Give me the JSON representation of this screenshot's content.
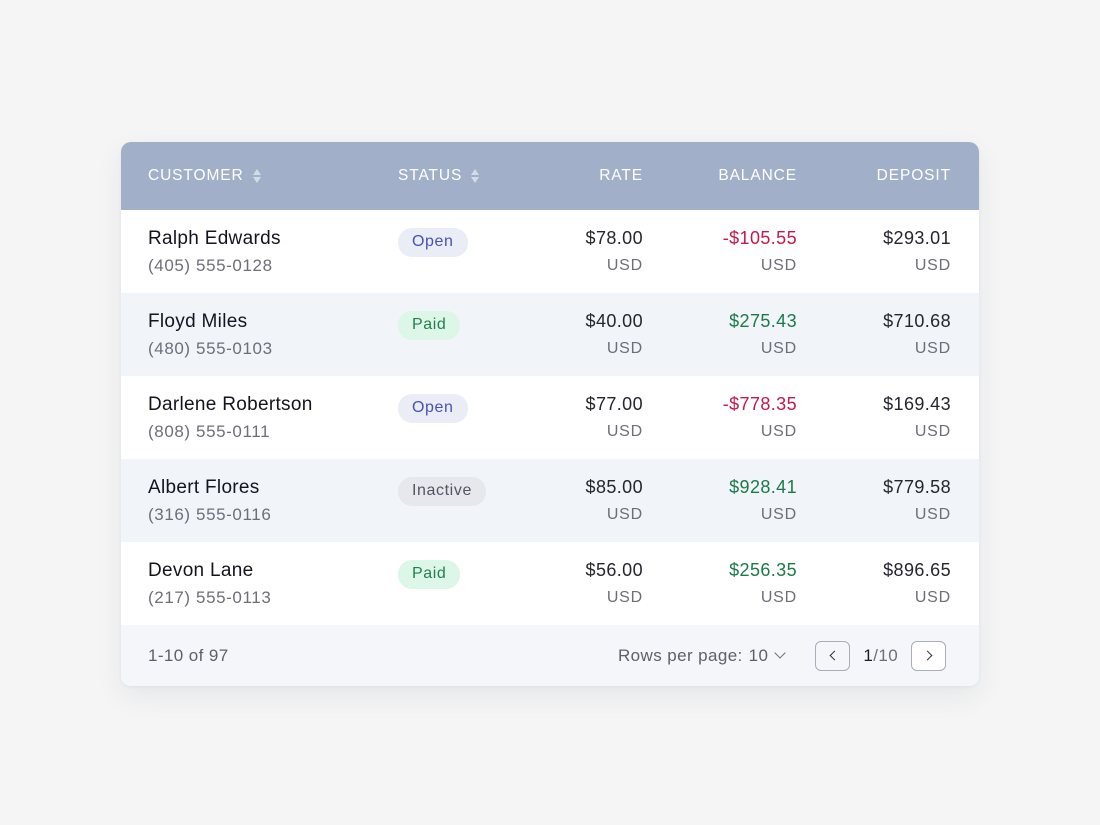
{
  "table": {
    "columns": [
      {
        "label": "CUSTOMER",
        "sortable": true
      },
      {
        "label": "STATUS",
        "sortable": true
      },
      {
        "label": "RATE",
        "sortable": false
      },
      {
        "label": "BALANCE",
        "sortable": false
      },
      {
        "label": "DEPOSIT",
        "sortable": false
      }
    ],
    "rows": [
      {
        "name": "Ralph Edwards",
        "phone": "(405) 555-0128",
        "status": "Open",
        "status_type": "open",
        "rate": "$78.00",
        "rate_currency": "USD",
        "balance": "-$105.55",
        "balance_sign": "neg",
        "balance_currency": "USD",
        "deposit": "$293.01",
        "deposit_currency": "USD"
      },
      {
        "name": "Floyd Miles",
        "phone": "(480) 555-0103",
        "status": "Paid",
        "status_type": "paid",
        "rate": "$40.00",
        "rate_currency": "USD",
        "balance": "$275.43",
        "balance_sign": "pos",
        "balance_currency": "USD",
        "deposit": "$710.68",
        "deposit_currency": "USD"
      },
      {
        "name": "Darlene Robertson",
        "phone": "(808) 555-0111",
        "status": "Open",
        "status_type": "open",
        "rate": "$77.00",
        "rate_currency": "USD",
        "balance": "-$778.35",
        "balance_sign": "neg",
        "balance_currency": "USD",
        "deposit": "$169.43",
        "deposit_currency": "USD"
      },
      {
        "name": "Albert Flores",
        "phone": "(316) 555-0116",
        "status": "Inactive",
        "status_type": "inactive",
        "rate": "$85.00",
        "rate_currency": "USD",
        "balance": "$928.41",
        "balance_sign": "pos",
        "balance_currency": "USD",
        "deposit": "$779.58",
        "deposit_currency": "USD"
      },
      {
        "name": "Devon Lane",
        "phone": "(217) 555-0113",
        "status": "Paid",
        "status_type": "paid",
        "rate": "$56.00",
        "rate_currency": "USD",
        "balance": "$256.35",
        "balance_sign": "pos",
        "balance_currency": "USD",
        "deposit": "$896.65",
        "deposit_currency": "USD"
      }
    ]
  },
  "footer": {
    "range_text": "1-10 of 97",
    "rows_per_page_label": "Rows per page:",
    "rows_per_page_value": "10",
    "current_page": "1",
    "total_pages_text": "/10"
  },
  "colors": {
    "header_bg": "#a1afc8",
    "negative": "#c5194a",
    "positive": "#1c7a47",
    "open_badge": "#4853b0",
    "paid_badge": "#22804f",
    "inactive_badge": "#535561"
  },
  "icons": {
    "sort": "sort-icon",
    "rows_dropdown": "chevron-down-icon",
    "prev": "chevron-left-icon",
    "next": "chevron-right-icon"
  }
}
